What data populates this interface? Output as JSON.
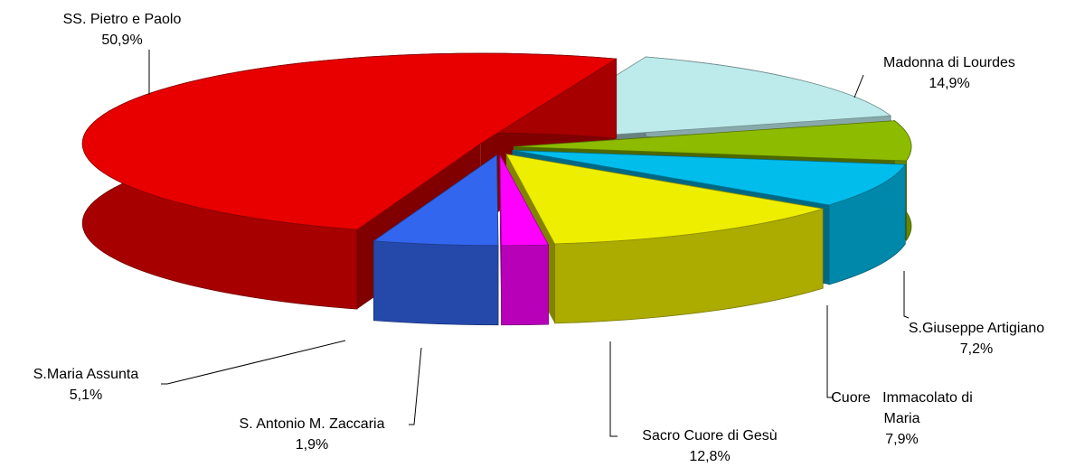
{
  "chart_data": {
    "type": "pie",
    "categories": [
      "Madonna di Lourdes",
      "S.Giuseppe Artigiano",
      "Cuore   Immacolato di Maria",
      "Sacro Cuore di Gesù",
      "S. Antonio M. Zaccaria",
      "S.Maria Assunta",
      "SS. Pietro e Paolo"
    ],
    "values": [
      14.9,
      7.2,
      7.9,
      12.8,
      1.9,
      5.1,
      50.9
    ],
    "value_labels": [
      "14,9%",
      "7,2%",
      "7,9%",
      "12,8%",
      "1,9%",
      "5,1%",
      "50,9%"
    ],
    "colors": [
      "#bdebec",
      "#8cbb00",
      "#00bdec",
      "#eeee00",
      "#ff00ff",
      "#3366ee",
      "#e80000"
    ]
  }
}
